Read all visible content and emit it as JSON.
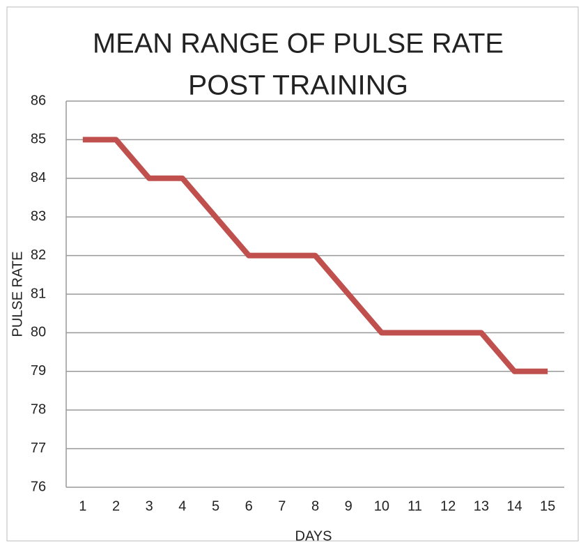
{
  "chart_data": {
    "type": "line",
    "title": [
      "MEAN RANGE OF PULSE RATE",
      "POST TRAINING"
    ],
    "x_label": "DAYS",
    "y_label": "PULSE RATE",
    "categories": [
      "1",
      "2",
      "3",
      "4",
      "5",
      "6",
      "7",
      "8",
      "9",
      "10",
      "11",
      "12",
      "13",
      "14",
      "15"
    ],
    "series": [
      {
        "name": "PULSE RATE",
        "color": "#c0504d",
        "values": [
          85,
          85,
          84,
          84,
          83,
          82,
          82,
          82,
          81,
          80,
          80,
          80,
          80,
          79,
          79
        ]
      }
    ],
    "ylim": [
      76,
      86
    ],
    "yticks": [
      76,
      77,
      78,
      79,
      80,
      81,
      82,
      83,
      84,
      85,
      86
    ],
    "grid": true,
    "legend": false
  }
}
